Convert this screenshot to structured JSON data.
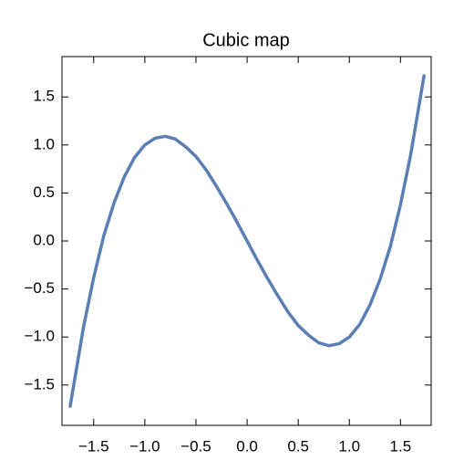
{
  "chart_data": {
    "type": "line",
    "title": "Cubic map",
    "x": [
      -1.73,
      -1.6,
      -1.5,
      -1.4,
      -1.3,
      -1.2,
      -1.1,
      -1.0,
      -0.9,
      -0.8,
      -0.7,
      -0.6,
      -0.5,
      -0.4,
      -0.3,
      -0.2,
      -0.1,
      0,
      0.1,
      0.2,
      0.3,
      0.4,
      0.5,
      0.6,
      0.7,
      0.8,
      0.9,
      1.0,
      1.1,
      1.2,
      1.3,
      1.4,
      1.5,
      1.6,
      1.73
    ],
    "series": [
      {
        "color": "#5b7fb4",
        "values": [
          -1.72,
          -0.9,
          -0.38,
          0.06,
          0.4,
          0.67,
          0.87,
          1.0,
          1.07,
          1.09,
          1.06,
          0.98,
          0.88,
          0.74,
          0.57,
          0.39,
          0.2,
          0,
          -0.2,
          -0.39,
          -0.57,
          -0.74,
          -0.88,
          -0.98,
          -1.06,
          -1.09,
          -1.07,
          -1.0,
          -0.87,
          -0.67,
          -0.4,
          -0.06,
          0.38,
          0.9,
          1.72
        ]
      }
    ],
    "xlim": [
      -1.81,
      1.8
    ],
    "ylim": [
      -1.92,
      1.92
    ],
    "xticks": [
      {
        "value": -1.5,
        "label": "−1.5"
      },
      {
        "value": -1.0,
        "label": "−1.0"
      },
      {
        "value": -0.5,
        "label": "−0.5"
      },
      {
        "value": 0,
        "label": "0.0"
      },
      {
        "value": 0.5,
        "label": "0.5"
      },
      {
        "value": 1.0,
        "label": "1.0"
      },
      {
        "value": 1.5,
        "label": "1.5"
      }
    ],
    "yticks": [
      {
        "value": -1.5,
        "label": "−1.5"
      },
      {
        "value": -1.0,
        "label": "−1.0"
      },
      {
        "value": -0.5,
        "label": "−0.5"
      },
      {
        "value": 0,
        "label": "0.0"
      },
      {
        "value": 0.5,
        "label": "0.5"
      },
      {
        "value": 1.0,
        "label": "1.0"
      },
      {
        "value": 1.5,
        "label": "1.5"
      }
    ]
  }
}
